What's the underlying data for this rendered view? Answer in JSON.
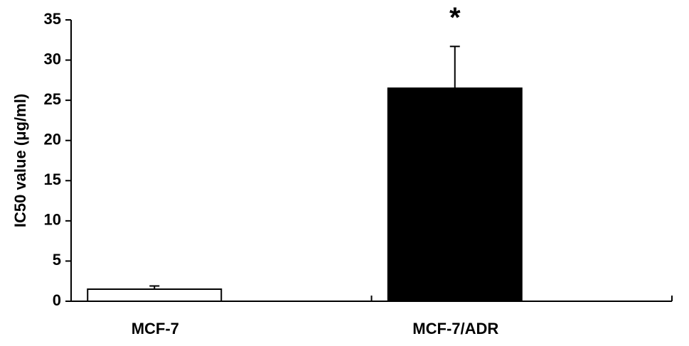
{
  "chart_data": {
    "type": "bar",
    "y_label": "IC50 value (μg/ml)",
    "categories": [
      "MCF-7",
      "MCF-7/ADR"
    ],
    "values": [
      1.5,
      26.5
    ],
    "errors": [
      0.4,
      5.2
    ],
    "colors": [
      "#ffffff",
      "#000000"
    ],
    "ylim": [
      0,
      35
    ],
    "yticks": [
      0,
      5,
      10,
      15,
      20,
      25,
      30,
      35
    ],
    "grid": false,
    "annotations": [
      {
        "text": "*",
        "category": "MCF-7/ADR"
      }
    ]
  }
}
